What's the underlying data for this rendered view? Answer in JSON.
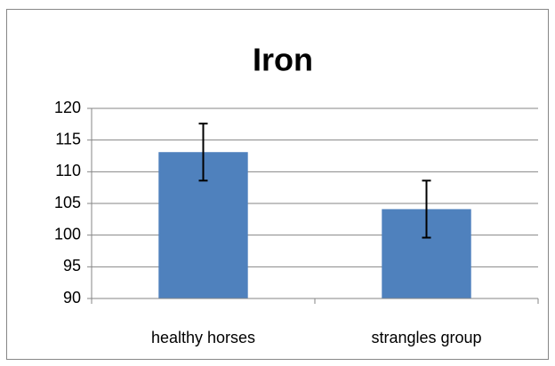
{
  "chart_data": {
    "type": "bar",
    "title": "Iron",
    "categories": [
      "healthy horses",
      "strangles group"
    ],
    "values": [
      113.1,
      104.1
    ],
    "errors": [
      4.5,
      4.5
    ],
    "color": "#4f81bd",
    "ylim": [
      90,
      120
    ],
    "yticks": [
      90,
      95,
      100,
      105,
      110,
      115,
      120
    ],
    "grid": true
  }
}
